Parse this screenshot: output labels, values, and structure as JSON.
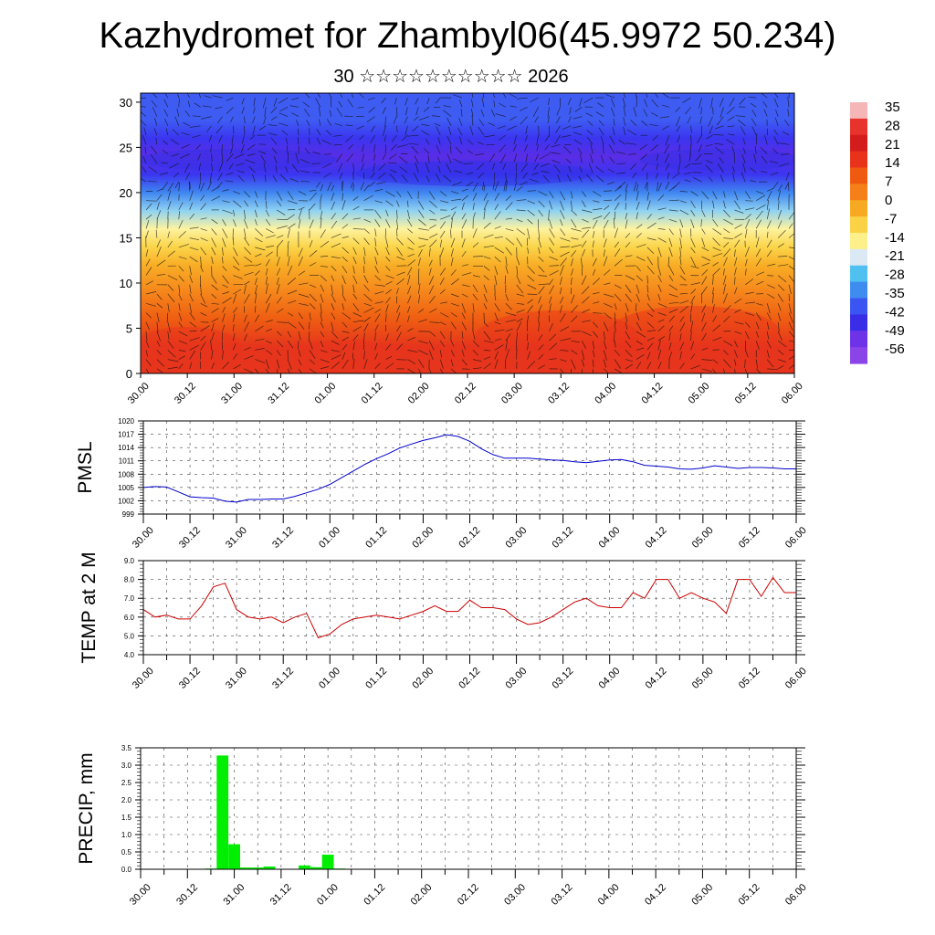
{
  "title": "Kazhydromet for Zhambyl06(45.9972 50.234)",
  "subtitle": "30 ☆☆☆☆☆☆☆☆☆☆ 2026",
  "chart_data": [
    {
      "type": "heatmap",
      "name": "cross-section",
      "description_vectors": "wind vectors overlaid",
      "xticks": [
        "30.00",
        "30.12",
        "31.00",
        "31.12",
        "01.00",
        "01.12",
        "02.00",
        "02.12",
        "03.00",
        "03.12",
        "04.00",
        "04.12",
        "05.00",
        "05.12",
        "06.00"
      ],
      "yticks": [
        0,
        5,
        10,
        15,
        20,
        25,
        30
      ],
      "ylim": [
        0,
        31
      ],
      "colorbar": {
        "labels": [
          "35",
          "28",
          "21",
          "14",
          "7",
          "0",
          "-7",
          "-14",
          "-21",
          "-28",
          "-35",
          "-42",
          "-49",
          "-56"
        ],
        "colors": [
          "#f4b6b6",
          "#e8322c",
          "#d51c1c",
          "#e9321a",
          "#f05a10",
          "#f5801a",
          "#f8a922",
          "#fbd245",
          "#fdf08a",
          "#dbe9f4",
          "#4fc0f0",
          "#3f8cf0",
          "#3b55f2",
          "#3a2de8",
          "#6e33e8",
          "#8a44e8"
        ]
      },
      "temperature_rows": [
        {
          "z": 0,
          "t": 14
        },
        {
          "z": 3,
          "t": 16
        },
        {
          "z": 6,
          "t": 10
        },
        {
          "z": 9,
          "t": 6
        },
        {
          "z": 12,
          "t": -1
        },
        {
          "z": 14,
          "t": -7
        },
        {
          "z": 16,
          "t": -14
        },
        {
          "z": 18,
          "t": -25
        },
        {
          "z": 20,
          "t": -38
        },
        {
          "z": 22,
          "t": -50
        },
        {
          "z": 24,
          "t": -56
        },
        {
          "z": 26,
          "t": -50
        },
        {
          "z": 28,
          "t": -45
        },
        {
          "z": 31,
          "t": -48
        }
      ]
    },
    {
      "type": "line",
      "ylabel": "PMSL",
      "ylim": [
        999,
        1020
      ],
      "yticks": [
        "1020",
        "1017",
        "1014",
        "1011",
        "1008",
        "1005",
        "1002",
        "999"
      ],
      "xticks": [
        "30.00",
        "30.12",
        "31.00",
        "31.12",
        "01.00",
        "01.12",
        "02.00",
        "02.12",
        "03.00",
        "03.12",
        "04.00",
        "04.12",
        "05.00",
        "05.12",
        "06.00"
      ],
      "color": "#0000cc",
      "x": [
        0,
        0.25,
        0.5,
        0.75,
        1,
        1.25,
        1.5,
        1.75,
        2,
        2.25,
        2.5,
        2.75,
        3,
        3.25,
        3.5,
        3.75,
        4,
        4.25,
        4.5,
        4.75,
        5,
        5.25,
        5.5,
        5.75,
        6,
        6.25,
        6.5,
        6.75,
        7,
        7.25,
        7.5,
        7.75,
        8,
        8.25,
        8.5,
        8.75,
        9,
        9.25,
        9.5,
        9.75,
        10,
        10.25,
        10.5,
        10.75,
        11,
        11.25,
        11.5,
        11.75,
        12,
        12.25,
        12.5,
        12.75,
        13,
        13.25,
        13.5,
        13.75,
        14
      ],
      "values": [
        1005,
        1005.2,
        1005.1,
        1004.0,
        1002.9,
        1002.7,
        1002.6,
        1001.9,
        1001.7,
        1002.3,
        1002.3,
        1002.4,
        1002.4,
        1003.0,
        1003.8,
        1004.6,
        1005.7,
        1007.2,
        1008.7,
        1010.2,
        1011.5,
        1012.6,
        1013.9,
        1014.8,
        1015.6,
        1016.2,
        1016.9,
        1016.5,
        1015.4,
        1013.7,
        1012.4,
        1011.6,
        1011.6,
        1011.6,
        1011.4,
        1011.2,
        1011.1,
        1010.8,
        1010.6,
        1010.9,
        1011.2,
        1011.3,
        1010.8,
        1010.0,
        1009.8,
        1009.6,
        1009.2,
        1009.1,
        1009.4,
        1009.9,
        1009.6,
        1009.3,
        1009.5,
        1009.5,
        1009.4,
        1009.2,
        1009.2
      ]
    },
    {
      "type": "line",
      "ylabel": "TEMP at 2 M",
      "ylim": [
        4,
        9
      ],
      "yticks": [
        "9.0",
        "8.0",
        "7.0",
        "6.0",
        "5.0",
        "4.0"
      ],
      "xticks": [
        "30.00",
        "30.12",
        "31.00",
        "31.12",
        "01.00",
        "01.12",
        "02.00",
        "02.12",
        "03.00",
        "03.12",
        "04.00",
        "04.12",
        "05.00",
        "05.12",
        "06.00"
      ],
      "color": "#cc0000",
      "x": [
        0,
        0.25,
        0.5,
        0.75,
        1,
        1.25,
        1.5,
        1.75,
        2,
        2.25,
        2.5,
        2.75,
        3,
        3.25,
        3.5,
        3.75,
        4,
        4.25,
        4.5,
        4.75,
        5,
        5.25,
        5.5,
        5.75,
        6,
        6.25,
        6.5,
        6.75,
        7,
        7.25,
        7.5,
        7.75,
        8,
        8.25,
        8.5,
        8.75,
        9,
        9.25,
        9.5,
        9.75,
        10,
        10.25,
        10.5,
        10.75,
        11,
        11.25,
        11.5,
        11.75,
        12,
        12.25,
        12.5,
        12.75,
        13,
        13.25,
        13.5,
        13.75,
        14
      ],
      "values": [
        6.4,
        6.0,
        6.1,
        5.9,
        5.9,
        6.6,
        7.6,
        7.8,
        6.4,
        6.0,
        5.9,
        6.0,
        5.7,
        6.0,
        6.2,
        4.9,
        5.1,
        5.6,
        5.9,
        6.0,
        6.1,
        6.0,
        5.9,
        6.1,
        6.3,
        6.6,
        6.3,
        6.3,
        6.9,
        6.5,
        6.5,
        6.4,
        5.9,
        5.6,
        5.7,
        6.0,
        6.4,
        6.8,
        7.0,
        6.6,
        6.5,
        6.5,
        7.3,
        7.0,
        8.0,
        8.0,
        7.0,
        7.3,
        7.0,
        6.8,
        6.2,
        8.0,
        8.0,
        7.1,
        8.1,
        7.3,
        7.3
      ]
    },
    {
      "type": "bar",
      "ylabel": "PRECIP, mm",
      "ylim": [
        0,
        3.5
      ],
      "yticks": [
        "3.5",
        "3.0",
        "2.5",
        "2.0",
        "1.5",
        "1.0",
        "0.5",
        "0.0"
      ],
      "xticks": [
        "30.00",
        "30.12",
        "31.00",
        "31.12",
        "01.00",
        "01.12",
        "02.00",
        "02.12",
        "03.00",
        "03.12",
        "04.00",
        "04.12",
        "05.00",
        "05.12",
        "06.00"
      ],
      "color": "#00ee00",
      "bar_width": 0.25,
      "x": [
        1.5,
        1.75,
        2.0,
        2.25,
        2.5,
        2.75,
        3.0,
        3.25,
        3.5,
        3.75,
        4.0,
        4.25
      ],
      "values": [
        0.02,
        3.28,
        0.72,
        0.05,
        0.05,
        0.08,
        0.0,
        0.0,
        0.11,
        0.06,
        0.42,
        0.02
      ]
    }
  ]
}
